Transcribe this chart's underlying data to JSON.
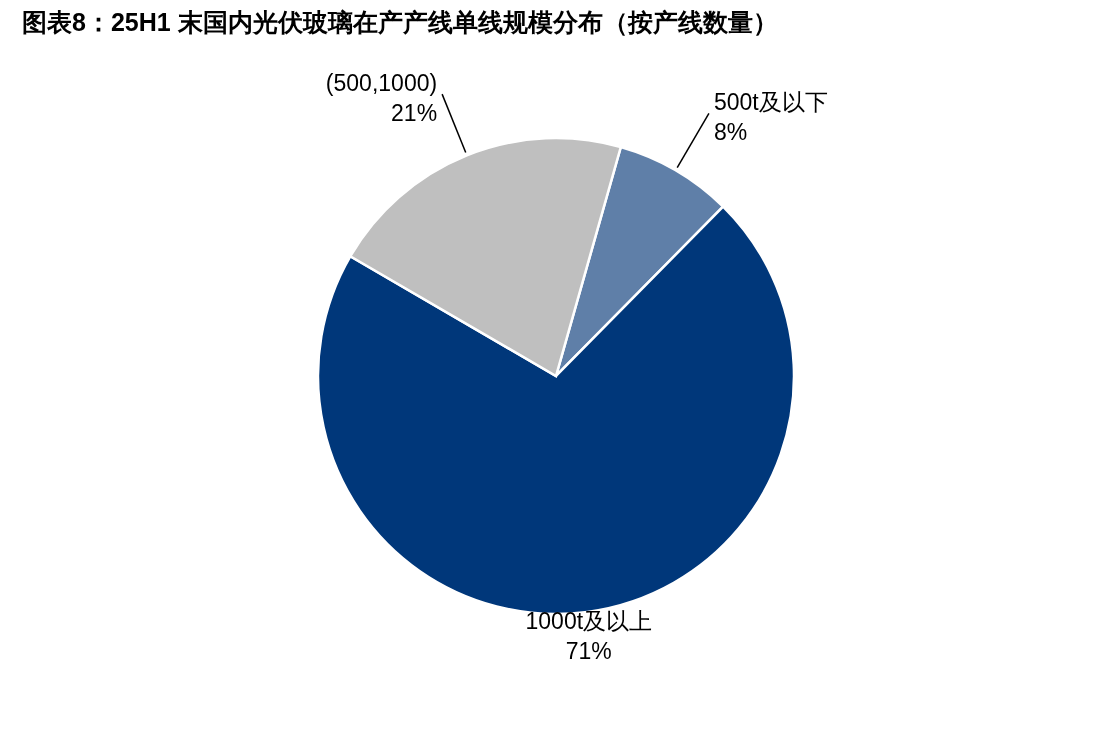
{
  "chart_data": {
    "type": "pie",
    "title": "图表8：25H1 末国内光伏玻璃在产产线单线规模分布（按产线数量）",
    "categories": [
      "500t及以下",
      "1000t及以上",
      "(500,1000)"
    ],
    "values": [
      8,
      71,
      21
    ],
    "colors": [
      "#5f7fa8",
      "#00377a",
      "#bfbfbf"
    ],
    "value_labels": [
      "8%",
      "71%",
      "21%"
    ]
  }
}
